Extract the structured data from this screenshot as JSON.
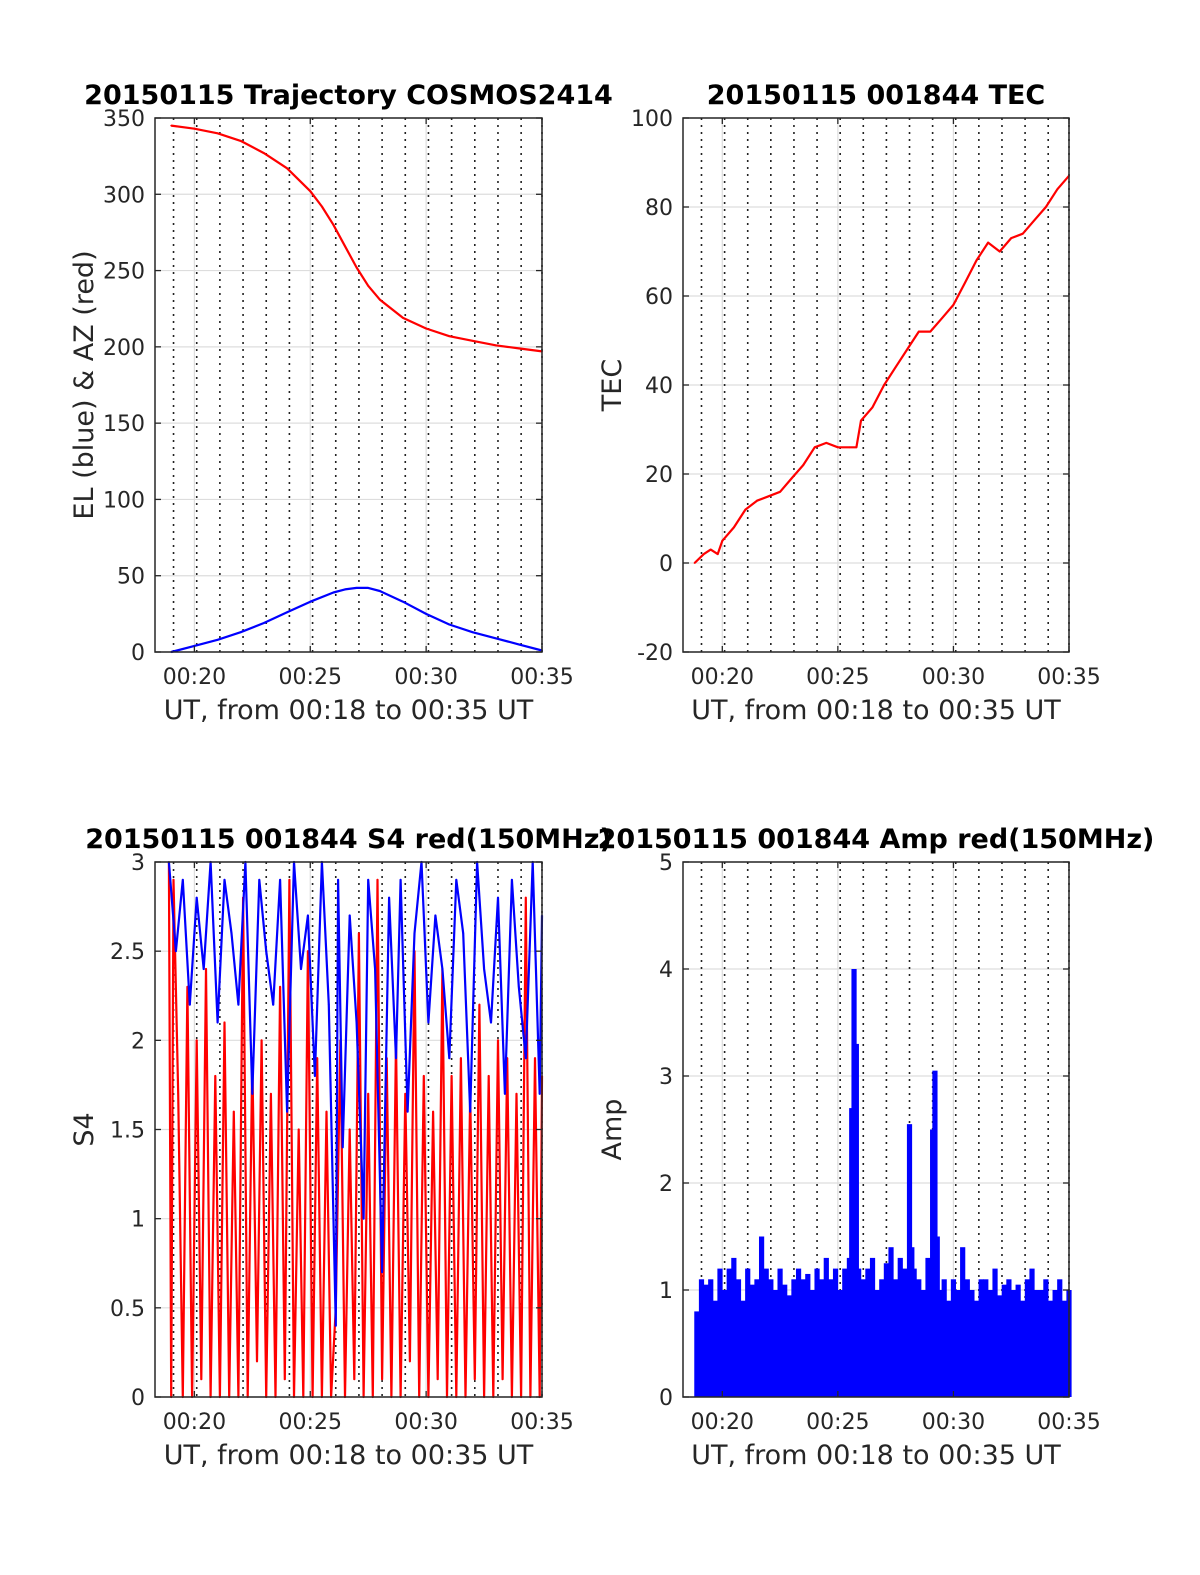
{
  "chart_data": [
    {
      "type": "line",
      "title": "20150115 Trajectory COSMOS2414",
      "xlabel": "UT, from 00:18 to 00:35 UT",
      "ylabel": "EL (blue) & AZ (red)",
      "xlim": [
        18.3,
        35
      ],
      "ylim": [
        0,
        350
      ],
      "xticks": [
        20,
        25,
        30,
        35
      ],
      "xticklabels": [
        "00:20",
        "00:25",
        "00:30",
        "00:35"
      ],
      "yticks": [
        0,
        50,
        100,
        150,
        200,
        250,
        300,
        350
      ],
      "grid": "on",
      "vlines": [
        19.1,
        20.1,
        21.1,
        22.1,
        23.1,
        24.1,
        25.1,
        26.1,
        27.1,
        28.1,
        29.1,
        30.1,
        31.1,
        32.1,
        33.1,
        34.1,
        35.0
      ],
      "series": [
        {
          "color": "#ff0000",
          "x": [
            19.0,
            20.0,
            21.0,
            22.0,
            23.0,
            24.0,
            25.0,
            25.5,
            26.0,
            26.5,
            27.0,
            27.5,
            28.0,
            29.0,
            30.0,
            31.0,
            32.0,
            33.0,
            34.0,
            35.0
          ],
          "y": [
            345,
            343,
            340,
            335,
            327,
            317,
            302,
            292,
            280,
            266,
            252,
            240,
            231,
            219,
            212,
            207,
            204,
            201,
            199,
            197
          ]
        },
        {
          "color": "#0000ff",
          "x": [
            19.0,
            20.0,
            21.0,
            22.0,
            23.0,
            24.0,
            25.0,
            26.0,
            26.5,
            27.0,
            27.5,
            28.0,
            29.0,
            30.0,
            31.0,
            32.0,
            33.0,
            34.0,
            35.0
          ],
          "y": [
            0,
            4,
            8,
            13,
            19,
            26,
            33,
            39,
            41,
            42,
            42,
            40,
            33,
            25,
            18,
            13,
            9,
            5,
            1
          ]
        }
      ]
    },
    {
      "type": "line",
      "title": "20150115 001844 TEC",
      "xlabel": "UT, from 00:18 to 00:35 UT",
      "ylabel": "TEC",
      "xlim": [
        18.3,
        35
      ],
      "ylim": [
        -20,
        100
      ],
      "xticks": [
        20,
        25,
        30,
        35
      ],
      "xticklabels": [
        "00:20",
        "00:25",
        "00:30",
        "00:35"
      ],
      "yticks": [
        -20,
        0,
        20,
        40,
        60,
        80,
        100
      ],
      "grid": "on",
      "vlines": [
        19.1,
        20.1,
        21.1,
        22.1,
        23.1,
        24.1,
        25.1,
        26.1,
        27.1,
        28.1,
        29.1,
        30.1,
        31.1,
        32.1,
        33.1,
        34.1,
        35.0
      ],
      "series": [
        {
          "color": "#ff0000",
          "x": [
            18.8,
            19.2,
            19.5,
            19.8,
            20.0,
            20.5,
            21.0,
            21.5,
            22.0,
            22.5,
            23.0,
            23.5,
            24.0,
            24.5,
            25.0,
            25.5,
            25.8,
            26.0,
            26.5,
            27.0,
            27.5,
            28.0,
            28.5,
            29.0,
            29.5,
            30.0,
            30.5,
            31.0,
            31.5,
            32.0,
            32.5,
            33.0,
            33.5,
            34.0,
            34.5,
            35.0
          ],
          "y": [
            0,
            2,
            3,
            2,
            5,
            8,
            12,
            14,
            15,
            16,
            19,
            22,
            26,
            27,
            26,
            26,
            26,
            32,
            35,
            40,
            44,
            48,
            52,
            52,
            55,
            58,
            63,
            68,
            72,
            70,
            73,
            74,
            77,
            80,
            84,
            87
          ]
        }
      ]
    },
    {
      "type": "line",
      "title": "20150115 001844 S4 red(150MHz)",
      "xlabel": "UT, from 00:18 to 00:35 UT",
      "ylabel": "S4",
      "xlim": [
        18.3,
        35
      ],
      "ylim": [
        0,
        3
      ],
      "xticks": [
        20,
        25,
        30,
        35
      ],
      "xticklabels": [
        "00:20",
        "00:25",
        "00:30",
        "00:35"
      ],
      "yticks": [
        0,
        0.5,
        1,
        1.5,
        2,
        2.5,
        3
      ],
      "grid": "on",
      "vlines": [
        19.1,
        20.1,
        21.1,
        22.1,
        23.1,
        24.1,
        25.1,
        26.1,
        27.1,
        28.1,
        29.1,
        30.1,
        31.1,
        32.1,
        33.1,
        34.1,
        35.0
      ],
      "series": [
        {
          "color": "#ff0000",
          "x": [
            18.9,
            19.0,
            19.1,
            19.3,
            19.5,
            19.7,
            19.9,
            20.1,
            20.3,
            20.5,
            20.7,
            20.9,
            21.1,
            21.3,
            21.5,
            21.7,
            21.9,
            22.1,
            22.3,
            22.5,
            22.7,
            22.9,
            23.1,
            23.3,
            23.5,
            23.7,
            23.9,
            24.1,
            24.3,
            24.5,
            24.7,
            24.9,
            25.1,
            25.3,
            25.5,
            25.7,
            25.9,
            26.1,
            26.3,
            26.5,
            26.7,
            26.9,
            27.1,
            27.3,
            27.5,
            27.7,
            27.9,
            28.1,
            28.3,
            28.5,
            28.7,
            28.9,
            29.1,
            29.3,
            29.5,
            29.7,
            29.9,
            30.1,
            30.3,
            30.5,
            30.7,
            30.9,
            31.1,
            31.3,
            31.5,
            31.7,
            31.9,
            32.1,
            32.3,
            32.5,
            32.7,
            32.9,
            33.1,
            33.3,
            33.5,
            33.7,
            33.9,
            34.1,
            34.3,
            34.5,
            34.7,
            34.9,
            35.0
          ],
          "y": [
            3,
            0,
            2.9,
            1.7,
            0,
            2.3,
            0,
            2.0,
            0.1,
            2.4,
            0,
            1.8,
            0,
            2.1,
            0,
            1.6,
            0,
            2.8,
            0,
            1.9,
            0.2,
            2.0,
            0,
            1.7,
            0,
            2.3,
            0.1,
            2.9,
            0,
            1.5,
            0,
            2.5,
            0,
            1.9,
            0,
            1.6,
            0,
            0.5,
            2.0,
            0,
            1.5,
            0.1,
            2.6,
            0,
            1.7,
            0,
            2.9,
            0.1,
            1.9,
            0,
            2.0,
            0,
            1.7,
            0.2,
            2.5,
            0,
            1.8,
            0,
            1.6,
            0.1,
            2.4,
            0,
            1.8,
            0,
            1.9,
            0,
            1.7,
            0.1,
            2.2,
            0,
            1.8,
            0,
            2.0,
            0.1,
            1.9,
            0,
            1.7,
            0,
            2.8,
            0,
            1.9,
            0,
            1.8
          ]
        },
        {
          "color": "#0000ff",
          "x": [
            18.9,
            19.2,
            19.5,
            19.8,
            20.1,
            20.4,
            20.7,
            21.0,
            21.3,
            21.6,
            21.9,
            22.2,
            22.5,
            22.8,
            23.1,
            23.4,
            23.7,
            24.0,
            24.3,
            24.6,
            24.9,
            25.2,
            25.5,
            25.8,
            26.1,
            26.2,
            26.4,
            26.7,
            27.0,
            27.3,
            27.5,
            27.8,
            28.1,
            28.4,
            28.7,
            28.9,
            29.2,
            29.5,
            29.8,
            30.1,
            30.4,
            30.7,
            31.0,
            31.3,
            31.6,
            31.9,
            32.2,
            32.5,
            32.8,
            33.1,
            33.4,
            33.7,
            34.0,
            34.3,
            34.6,
            34.9,
            35.0
          ],
          "y": [
            3,
            2.5,
            2.9,
            2.2,
            2.8,
            2.4,
            3,
            2.1,
            2.9,
            2.6,
            2.2,
            3,
            1.7,
            2.9,
            2.5,
            2.2,
            2.9,
            1.6,
            3,
            2.4,
            2.7,
            1.8,
            3,
            2.2,
            0.4,
            2.9,
            1.4,
            2.7,
            2.1,
            1.0,
            2.9,
            2.4,
            0.7,
            2.8,
            1.9,
            2.9,
            1.6,
            2.6,
            3,
            2.1,
            2.7,
            2.4,
            1.9,
            2.9,
            2.6,
            1.6,
            3,
            2.4,
            2.1,
            2.8,
            1.7,
            2.9,
            2.3,
            1.9,
            3,
            1.7,
            2.7
          ]
        }
      ]
    },
    {
      "type": "bar",
      "title": "20150115 001844 Amp red(150MHz)",
      "xlabel": "UT, from 00:18 to 00:35 UT",
      "ylabel": "Amp",
      "xlim": [
        18.3,
        35
      ],
      "ylim": [
        0,
        5
      ],
      "xticks": [
        20,
        25,
        30,
        35
      ],
      "xticklabels": [
        "00:20",
        "00:25",
        "00:30",
        "00:35"
      ],
      "yticks": [
        0,
        1,
        2,
        3,
        4,
        5
      ],
      "grid": "on",
      "vlines": [
        19.1,
        20.1,
        21.1,
        22.1,
        23.1,
        24.1,
        25.1,
        26.1,
        27.1,
        28.1,
        29.1,
        30.1,
        31.1,
        32.1,
        33.1,
        34.1,
        35.0
      ],
      "series": [
        {
          "color": "#0000ff",
          "x": [
            18.9,
            19.1,
            19.3,
            19.5,
            19.7,
            19.9,
            20.1,
            20.3,
            20.5,
            20.7,
            20.9,
            21.1,
            21.3,
            21.5,
            21.7,
            21.9,
            22.1,
            22.3,
            22.5,
            22.7,
            22.9,
            23.1,
            23.3,
            23.5,
            23.7,
            23.9,
            24.1,
            24.3,
            24.5,
            24.7,
            24.9,
            25.1,
            25.3,
            25.5,
            25.6,
            25.7,
            25.8,
            25.9,
            26.1,
            26.3,
            26.5,
            26.7,
            26.9,
            27.1,
            27.3,
            27.5,
            27.7,
            27.9,
            28.1,
            28.2,
            28.3,
            28.5,
            28.7,
            28.9,
            29.1,
            29.2,
            29.3,
            29.4,
            29.6,
            29.8,
            30.0,
            30.2,
            30.4,
            30.6,
            30.8,
            31.0,
            31.2,
            31.4,
            31.6,
            31.8,
            32.0,
            32.2,
            32.4,
            32.6,
            32.8,
            33.0,
            33.2,
            33.4,
            33.6,
            33.8,
            34.0,
            34.2,
            34.4,
            34.6,
            34.8,
            35.0
          ],
          "y": [
            0.8,
            1.1,
            1.05,
            1.1,
            0.9,
            1.2,
            1.0,
            1.2,
            1.3,
            1.1,
            0.9,
            1.2,
            1.05,
            1.1,
            1.5,
            1.2,
            1.1,
            1.0,
            1.2,
            1.05,
            0.95,
            1.1,
            1.2,
            1.1,
            1.15,
            1.0,
            1.2,
            1.1,
            1.3,
            1.1,
            1.2,
            1.0,
            1.2,
            1.3,
            2.7,
            4.0,
            3.3,
            1.2,
            1.1,
            1.2,
            1.3,
            1.0,
            1.1,
            1.25,
            1.4,
            1.1,
            1.3,
            1.2,
            2.55,
            1.4,
            1.2,
            1.1,
            1.0,
            1.3,
            2.5,
            3.05,
            1.5,
            1.0,
            1.1,
            0.9,
            1.1,
            1.0,
            1.4,
            1.1,
            1.0,
            0.9,
            1.1,
            1.1,
            1.0,
            1.2,
            0.95,
            1.05,
            1.1,
            1.0,
            1.05,
            0.9,
            1.1,
            1.2,
            1.0,
            1.0,
            1.1,
            0.9,
            1.0,
            1.1,
            0.9,
            1.0
          ]
        }
      ]
    }
  ]
}
